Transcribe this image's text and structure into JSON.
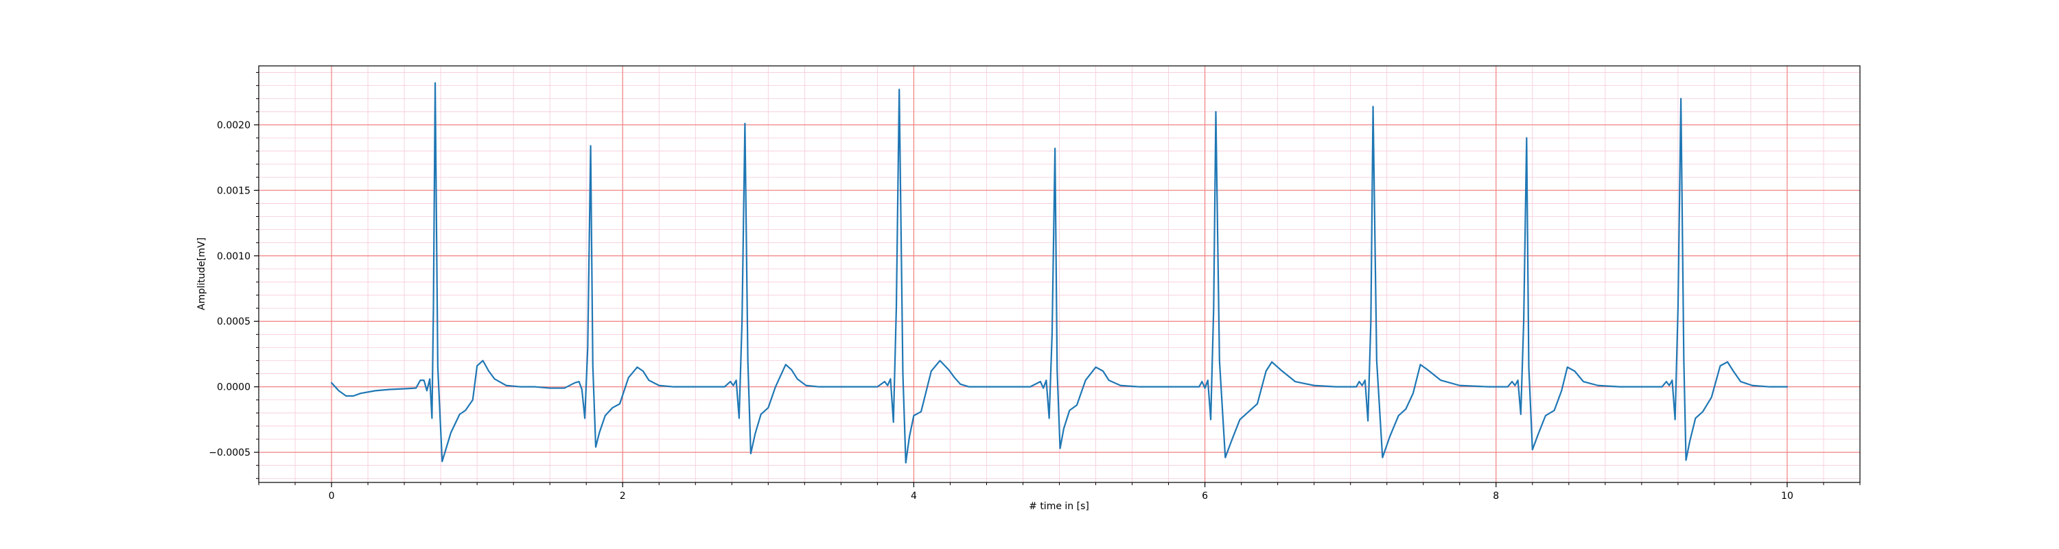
{
  "chart_data": {
    "type": "line",
    "title": "",
    "xlabel": "# time in [s]",
    "ylabel": "Amplitude[mV]",
    "xlim": [
      -0.5,
      10.5
    ],
    "ylim": [
      -0.00073,
      0.00245
    ],
    "x_ticks": [
      0,
      2,
      4,
      6,
      8,
      10
    ],
    "x_tick_labels": [
      "0",
      "2",
      "4",
      "6",
      "8",
      "10"
    ],
    "y_ticks": [
      -0.0005,
      0.0,
      0.0005,
      0.001,
      0.0015,
      0.002
    ],
    "y_tick_labels": [
      "−0.0005",
      "0.0000",
      "0.0005",
      "0.0010",
      "0.0015",
      "0.0020"
    ],
    "grid": true,
    "major_grid_color": "#f08080",
    "minor_grid_color": "#f7c8d8",
    "line_color": "#1f77b4",
    "series": [
      {
        "x": [
          0.0,
          0.05,
          0.1,
          0.15,
          0.2,
          0.3,
          0.4,
          0.5,
          0.58,
          0.61,
          0.635,
          0.655,
          0.675,
          0.69,
          0.7,
          0.712,
          0.73,
          0.76,
          0.82,
          0.88,
          0.92,
          0.97,
          1.0,
          1.04,
          1.08,
          1.12,
          1.2,
          1.3,
          1.4,
          1.5,
          1.6,
          1.67,
          1.7,
          1.72,
          1.74,
          1.76,
          1.78,
          1.795,
          1.815,
          1.84,
          1.88,
          1.93,
          1.98,
          2.04,
          2.1,
          2.14,
          2.18,
          2.25,
          2.35,
          2.5,
          2.62,
          2.7,
          2.74,
          2.76,
          2.78,
          2.8,
          2.82,
          2.84,
          2.86,
          2.88,
          2.91,
          2.95,
          3.0,
          3.05,
          3.12,
          3.16,
          3.2,
          3.26,
          3.35,
          3.5,
          3.6,
          3.75,
          3.8,
          3.82,
          3.84,
          3.86,
          3.88,
          3.9,
          3.925,
          3.945,
          3.97,
          4.0,
          4.05,
          4.12,
          4.18,
          4.24,
          4.28,
          4.32,
          4.38,
          4.5,
          4.65,
          4.8,
          4.87,
          4.89,
          4.91,
          4.93,
          4.95,
          4.97,
          4.985,
          5.005,
          5.03,
          5.07,
          5.12,
          5.18,
          5.25,
          5.3,
          5.34,
          5.42,
          5.55,
          5.7,
          5.9,
          5.96,
          5.98,
          6.0,
          6.02,
          6.04,
          6.06,
          6.075,
          6.1,
          6.14,
          6.18,
          6.24,
          6.3,
          6.36,
          6.42,
          6.46,
          6.52,
          6.62,
          6.75,
          6.9,
          7.0,
          7.04,
          7.06,
          7.08,
          7.1,
          7.12,
          7.14,
          7.155,
          7.18,
          7.22,
          7.27,
          7.33,
          7.38,
          7.43,
          7.48,
          7.53,
          7.62,
          7.75,
          7.95,
          8.08,
          8.11,
          8.13,
          8.15,
          8.17,
          8.19,
          8.21,
          8.225,
          8.25,
          8.29,
          8.34,
          8.4,
          8.45,
          8.49,
          8.54,
          8.6,
          8.7,
          8.85,
          9.05,
          9.14,
          9.17,
          9.19,
          9.21,
          9.23,
          9.25,
          9.27,
          9.29,
          9.305,
          9.33,
          9.37,
          9.42,
          9.48,
          9.54,
          9.59,
          9.63,
          9.68,
          9.76,
          9.88,
          10.0
        ],
        "y": [
          3e-05,
          -3e-05,
          -7e-05,
          -7e-05,
          -5e-05,
          -3e-05,
          -2e-05,
          -1.5e-05,
          -1e-05,
          5e-05,
          5e-05,
          -3e-05,
          6e-05,
          -0.00024,
          0.0006,
          0.00232,
          0.00015,
          -0.00057,
          -0.00035,
          -0.00021,
          -0.00018,
          -0.0001,
          0.00016,
          0.0002,
          0.00012,
          6e-05,
          1e-05,
          0.0,
          0.0,
          -1e-05,
          -1e-05,
          3e-05,
          4e-05,
          -2e-05,
          -0.00024,
          0.0003,
          0.00184,
          0.00016,
          -0.00046,
          -0.00035,
          -0.00022,
          -0.00016,
          -0.00013,
          7e-05,
          0.00015,
          0.00012,
          5e-05,
          1e-05,
          0.0,
          0.0,
          0.0,
          0.0,
          4e-05,
          1e-05,
          5e-05,
          -0.00024,
          0.0005,
          0.00201,
          0.0002,
          -0.00051,
          -0.00036,
          -0.00021,
          -0.00016,
          0.0,
          0.00017,
          0.00013,
          6e-05,
          1e-05,
          0.0,
          0.0,
          0.0,
          0.0,
          4e-05,
          1e-05,
          6e-05,
          -0.00027,
          0.0006,
          0.00227,
          0.0001,
          -0.00058,
          -0.00038,
          -0.00022,
          -0.00019,
          0.00012,
          0.0002,
          0.00013,
          7e-05,
          2e-05,
          0.0,
          0.0,
          0.0,
          0.0,
          4e-05,
          -1e-05,
          5e-05,
          -0.00024,
          0.0004,
          0.00182,
          0.00012,
          -0.00047,
          -0.00032,
          -0.00018,
          -0.00014,
          5e-05,
          0.00015,
          0.00012,
          5e-05,
          1e-05,
          0.0,
          0.0,
          0.0,
          0.0,
          4e-05,
          -1e-05,
          5e-05,
          -0.00025,
          0.0006,
          0.0021,
          0.0002,
          -0.00054,
          -0.00042,
          -0.00025,
          -0.00019,
          -0.00013,
          0.00012,
          0.00019,
          0.00013,
          4e-05,
          1e-05,
          0.0,
          0.0,
          0.0,
          4e-05,
          1e-05,
          5e-05,
          -0.00026,
          0.0005,
          0.00214,
          0.0002,
          -0.00054,
          -0.00038,
          -0.00022,
          -0.00017,
          -5e-05,
          0.00017,
          0.00013,
          5e-05,
          1e-05,
          0.0,
          0.0,
          4e-05,
          1e-05,
          5e-05,
          -0.00021,
          0.0005,
          0.0019,
          0.00015,
          -0.00048,
          -0.00036,
          -0.00022,
          -0.00018,
          -3e-05,
          0.00015,
          0.00012,
          4e-05,
          1e-05,
          0.0,
          0.0,
          0.0,
          4e-05,
          1e-05,
          5e-05,
          -0.00025,
          0.0006,
          0.0022,
          0.0002,
          -0.00056,
          -0.00042,
          -0.00024,
          -0.00019,
          -8e-05,
          0.00016,
          0.00019,
          0.00012,
          4e-05,
          1e-05,
          0.0,
          0.0
        ]
      }
    ]
  }
}
